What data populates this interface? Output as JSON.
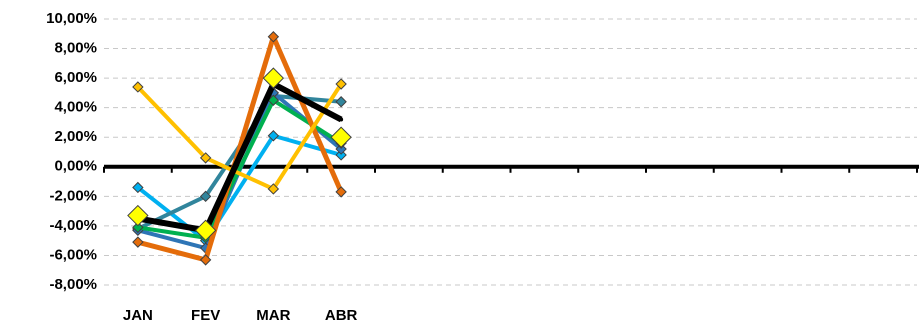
{
  "chart_data": {
    "type": "line",
    "categories": [
      "JAN",
      "FEV",
      "MAR",
      "ABR",
      null,
      null,
      null,
      null,
      null,
      null,
      null,
      null
    ],
    "series": [
      {
        "color": "#00b0f0",
        "line_width": 4,
        "marker": "diamond",
        "marker_size": 5,
        "values": [
          -1.4,
          -5.0,
          2.1,
          0.8,
          null,
          null,
          null,
          null,
          null,
          null,
          null,
          null
        ]
      },
      {
        "color": "#31859c",
        "line_width": 4,
        "marker": "diamond",
        "marker_size": 5,
        "values": [
          -4.2,
          -2.0,
          4.8,
          4.4,
          null,
          null,
          null,
          null,
          null,
          null,
          null,
          null
        ]
      },
      {
        "color": "#2e75b6",
        "line_width": 4,
        "marker": "diamond",
        "marker_size": 5,
        "values": [
          -4.3,
          -5.5,
          5.0,
          1.2,
          null,
          null,
          null,
          null,
          null,
          null,
          null,
          null
        ]
      },
      {
        "color": "#00b050",
        "line_width": 4,
        "marker": "diamond",
        "marker_size": 5,
        "values": [
          -4.1,
          -4.8,
          4.5,
          1.6,
          null,
          null,
          null,
          null,
          null,
          null,
          null,
          null
        ]
      },
      {
        "color": "#e46c0a",
        "line_width": 5,
        "marker": "diamond",
        "marker_size": 5,
        "values": [
          -5.1,
          -6.3,
          8.8,
          -1.7,
          null,
          null,
          null,
          null,
          null,
          null,
          null,
          null
        ]
      },
      {
        "color": "#ffc000",
        "line_width": 4,
        "marker": "diamond",
        "marker_size": 5,
        "values": [
          5.4,
          0.6,
          -1.5,
          5.6,
          null,
          null,
          null,
          null,
          null,
          null,
          null,
          null
        ]
      },
      {
        "color": "#000000",
        "line_width": 6,
        "marker": "dot",
        "marker_size": 2,
        "values": [
          -3.5,
          -4.3,
          5.6,
          3.2,
          null,
          null,
          null,
          null,
          null,
          null,
          null,
          null
        ]
      },
      {
        "color": "#ffff00",
        "line_width": 0,
        "marker": "diamond",
        "marker_size": 10,
        "values": [
          -3.3,
          -4.3,
          6.0,
          2.0,
          null,
          null,
          null,
          null,
          null,
          null,
          null,
          null
        ]
      }
    ],
    "ylim": [
      -8,
      10
    ],
    "yticks": [
      {
        "value": -8,
        "label": "-8,00%"
      },
      {
        "value": -6,
        "label": "-6,00%"
      },
      {
        "value": -4,
        "label": "-4,00%"
      },
      {
        "value": -2,
        "label": "-2,00%"
      },
      {
        "value": 0,
        "label": "0,00%"
      },
      {
        "value": 2,
        "label": "2,00%"
      },
      {
        "value": 4,
        "label": "4,00%"
      },
      {
        "value": 6,
        "label": "6,00%"
      },
      {
        "value": 8,
        "label": "8,00%"
      },
      {
        "value": 10,
        "label": "10,00%"
      }
    ],
    "grid": true
  }
}
